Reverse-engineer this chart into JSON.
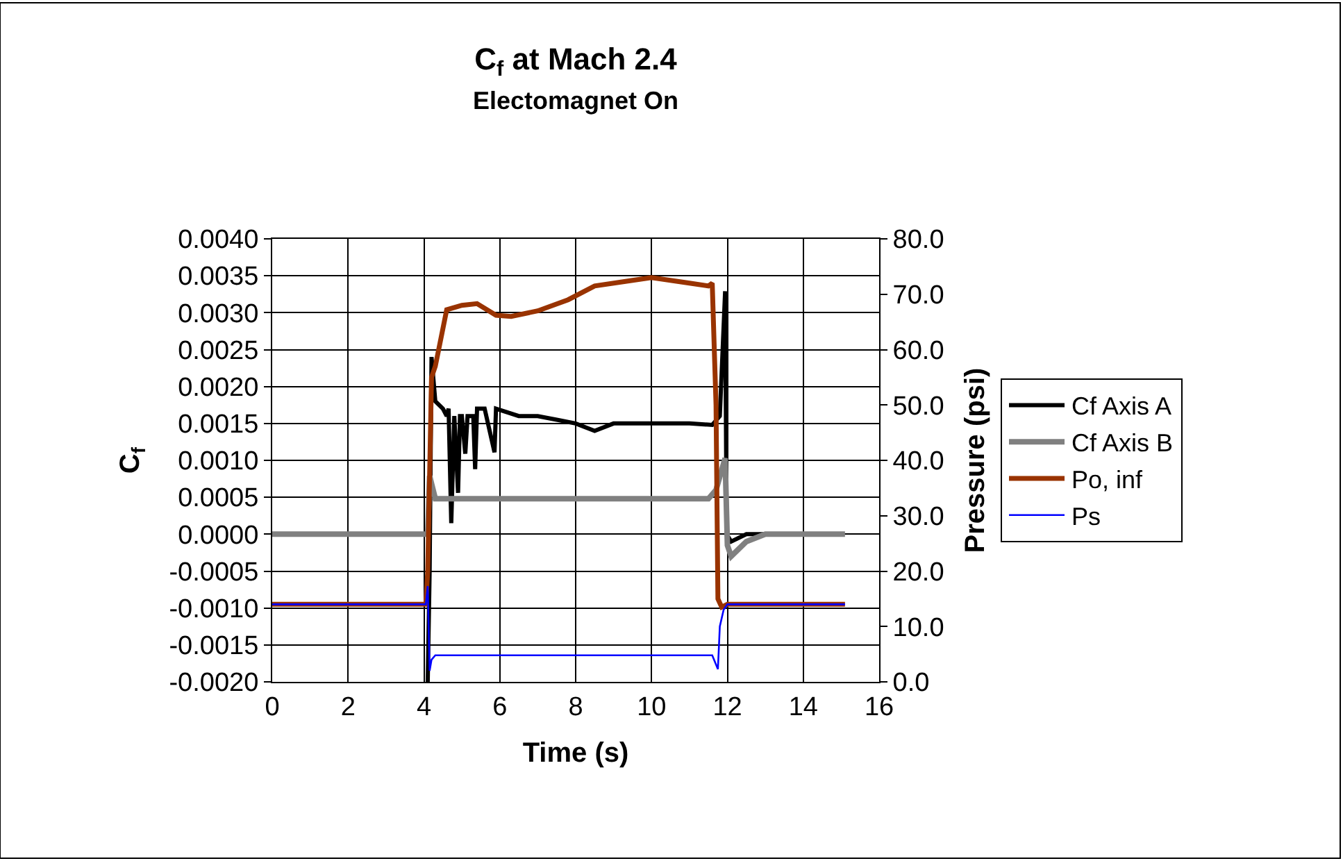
{
  "chart_data": {
    "type": "line",
    "title": "C$_{f}$ at Mach 2.4",
    "subtitle": "Electomagnet On",
    "xlabel": "Time (s)",
    "ylabel": "C$_{f}$",
    "y2label": "Pressure (psi)",
    "xlim": [
      0,
      16
    ],
    "xticks": [
      0,
      2,
      4,
      6,
      8,
      10,
      12,
      14,
      16
    ],
    "ylim": [
      -0.002,
      0.004
    ],
    "yticks": [
      {
        "value": -0.002,
        "label": "-0.0020"
      },
      {
        "value": -0.0015,
        "label": "-0.0015"
      },
      {
        "value": -0.001,
        "label": "-0.0010"
      },
      {
        "value": -0.0005,
        "label": "-0.0005"
      },
      {
        "value": 0,
        "label": "0.0000"
      },
      {
        "value": 0.0005,
        "label": "0.0005"
      },
      {
        "value": 0.001,
        "label": "0.0010"
      },
      {
        "value": 0.0015,
        "label": "0.0015"
      },
      {
        "value": 0.002,
        "label": "0.0020"
      },
      {
        "value": 0.0025,
        "label": "0.0025"
      },
      {
        "value": 0.003,
        "label": "0.0030"
      },
      {
        "value": 0.0035,
        "label": "0.0035"
      },
      {
        "value": 0.004,
        "label": "0.0040"
      }
    ],
    "y2lim": [
      0,
      80
    ],
    "y2ticks": [
      {
        "value": 0,
        "label": "0.0"
      },
      {
        "value": 10,
        "label": "10.0"
      },
      {
        "value": 20,
        "label": "20.0"
      },
      {
        "value": 30,
        "label": "30.0"
      },
      {
        "value": 40,
        "label": "40.0"
      },
      {
        "value": 50,
        "label": "50.0"
      },
      {
        "value": 60,
        "label": "60.0"
      },
      {
        "value": 70,
        "label": "70.0"
      },
      {
        "value": 80,
        "label": "80.0"
      }
    ],
    "grid": true,
    "legend": "right",
    "marker": "none",
    "series": [
      {
        "name": "Cf Axis A",
        "color": "#000000",
        "x": [
          4.1,
          4.15,
          4.2,
          4.3,
          4.5,
          4.6,
          4.65,
          4.72,
          4.8,
          4.9,
          4.95,
          5.0,
          5.09,
          5.15,
          5.3,
          5.35,
          5.4,
          5.6,
          5.86,
          5.9,
          6.2,
          6.5,
          7.0,
          7.5,
          8.0,
          8.5,
          9.0,
          10.0,
          11.0,
          11.6,
          11.8,
          11.94,
          11.98,
          12.1,
          12.5,
          13.5,
          14.4
        ],
        "values": [
          -0.002,
          -0.0005,
          0.0024,
          0.0018,
          0.0017,
          0.0016,
          0.0017,
          0.00015,
          0.0016,
          0.00056,
          0.0016,
          0.0016,
          0.00109,
          0.0016,
          0.0016,
          0.00088,
          0.0017,
          0.0017,
          0.00111,
          0.0017,
          0.00165,
          0.0016,
          0.0016,
          0.00155,
          0.0015,
          0.0014,
          0.0015,
          0.0015,
          0.0015,
          0.00148,
          0.0016,
          0.00329,
          0.0,
          -0.0001,
          0.0,
          0.0,
          0.0
        ]
      },
      {
        "name": "Cf Axis B",
        "color": "#808080",
        "x": [
          0,
          4.1,
          4.15,
          4.3,
          6.0,
          8.0,
          10.0,
          11.5,
          11.7,
          11.94,
          12.0,
          12.1,
          12.5,
          13.0,
          14.0,
          15.1
        ],
        "values": [
          0.0,
          0.0,
          0.00079,
          0.00048,
          0.00048,
          0.00048,
          0.00048,
          0.00048,
          0.0006,
          0.00103,
          -0.00015,
          -0.0003,
          -0.0001,
          0.0,
          0.0,
          0.0
        ]
      },
      {
        "name": "Po, inf",
        "color": "#993300",
        "axis": "y2",
        "x": [
          0,
          4.05,
          4.1,
          4.2,
          4.3,
          4.4,
          4.6,
          5.0,
          5.4,
          5.9,
          6.3,
          7.0,
          7.8,
          8.5,
          9.5,
          10.0,
          11.0,
          11.5,
          11.6,
          11.7,
          11.75,
          11.85,
          12.0,
          13.0,
          15.1
        ],
        "values": [
          14,
          14,
          20,
          55,
          57,
          60.4,
          67.2,
          68,
          68.3,
          66.2,
          66,
          67,
          69,
          71.5,
          72.5,
          73,
          72,
          71.5,
          72,
          50,
          15,
          13.5,
          14,
          14,
          14
        ]
      },
      {
        "name": "Ps",
        "color": "#0000ff",
        "axis": "y2",
        "x": [
          0,
          4.05,
          4.1,
          4.15,
          4.2,
          4.3,
          6.0,
          8.0,
          10.0,
          11.6,
          11.75,
          11.8,
          11.9,
          12.0,
          12.1,
          13.0,
          15.1
        ],
        "values": [
          14,
          14,
          17.3,
          2,
          4.0,
          4.8,
          4.8,
          4.8,
          4.8,
          4.8,
          2.3,
          10,
          13,
          14,
          14,
          14,
          14
        ]
      }
    ]
  }
}
